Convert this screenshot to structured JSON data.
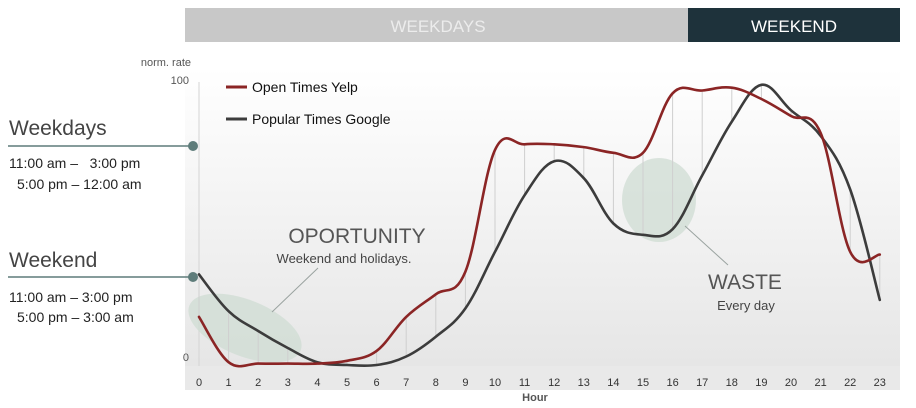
{
  "bands": {
    "weekdays": {
      "label": "WEEKDAYS",
      "color": "#c8c8c8",
      "text_color": "#ececec"
    },
    "weekend": {
      "label": "WEEKEND",
      "color": "#1e323b",
      "text_color": "#ffffff"
    }
  },
  "schedule": {
    "weekdays": {
      "title": "Weekdays",
      "line1": "11:00 am –   3:00 pm",
      "line2": "5:00 pm – 12:00 am"
    },
    "weekend": {
      "title": "Weekend",
      "line1": "11:00 am – 3:00 pm",
      "line2": "5:00 pm – 3:00 am"
    },
    "marker_color": "#5e7c7a"
  },
  "annotations": {
    "opportunity": {
      "title": "OPORTUNITY",
      "subtitle": "Weekend and holidays."
    },
    "waste": {
      "title": "WASTE",
      "subtitle": "Every day"
    },
    "highlight_color": "#cfdcd3"
  },
  "chart_data": {
    "type": "line",
    "xlabel": "Hour",
    "ylabel": "norm. rate",
    "ylim": [
      0,
      100
    ],
    "ytick_labels": [
      "0",
      "100"
    ],
    "x": [
      0,
      1,
      2,
      3,
      4,
      5,
      6,
      7,
      8,
      9,
      10,
      11,
      12,
      13,
      14,
      15,
      16,
      17,
      18,
      19,
      20,
      21,
      22,
      23
    ],
    "series": [
      {
        "name": "Open Times Yelp",
        "color": "#8b2525",
        "values": [
          17,
          1,
          0.5,
          0.5,
          0.5,
          1.5,
          5,
          17,
          25,
          33,
          76,
          78,
          78,
          77,
          75,
          75,
          96,
          97,
          98,
          94,
          88,
          82,
          40,
          39
        ]
      },
      {
        "name": "Popular Times Google",
        "color": "#3c3c3c",
        "values": [
          32,
          19,
          12,
          6,
          1,
          0,
          0,
          3,
          10,
          20,
          40,
          60,
          72,
          66,
          50,
          46,
          48,
          67,
          86,
          99,
          90,
          81,
          62,
          23
        ]
      }
    ],
    "legend_position": "top-left",
    "grid": false
  }
}
